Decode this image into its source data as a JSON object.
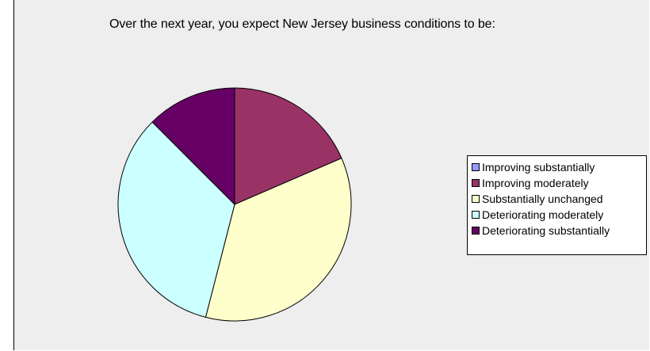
{
  "chart_data": {
    "type": "pie",
    "title": "Over the next year, you expect New Jersey business conditions to be:",
    "categories": [
      "Improving substantially",
      "Improving moderately",
      "Substantially unchanged",
      "Deteriorating moderately",
      "Deteriorating substantially"
    ],
    "values": [
      0,
      18.5,
      35.5,
      33.5,
      12.5
    ],
    "colors": [
      "#9999ff",
      "#993366",
      "#ffffcc",
      "#ccffff",
      "#660066"
    ],
    "legend_position": "right"
  }
}
